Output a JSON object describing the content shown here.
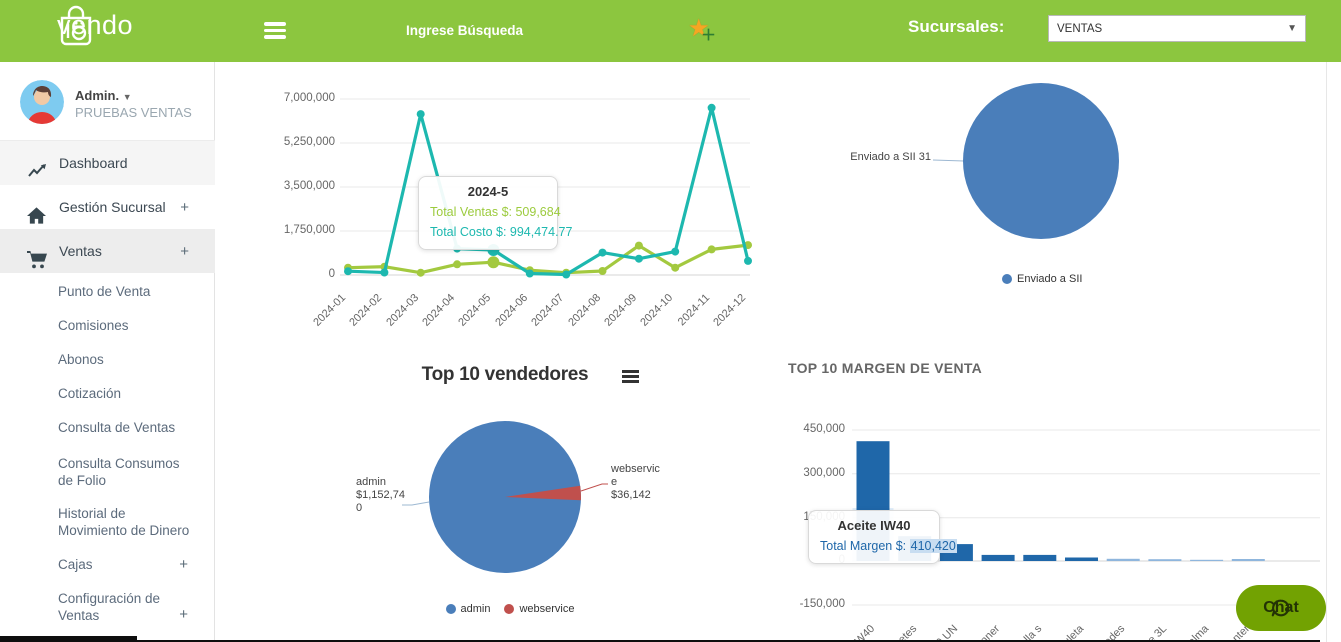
{
  "header": {
    "logo_text": "vendo",
    "search_placeholder": "Ingrese Búsqueda",
    "sucursales_label": "Sucursales:",
    "branch_selected": "VENTAS"
  },
  "sidebar": {
    "user": {
      "name": "Admin.",
      "subtitle": "PRUEBAS VENTAS"
    },
    "items": [
      {
        "label": "Dashboard",
        "icon": "trending-up-icon",
        "plus": false,
        "bg": "#f5f5f5"
      },
      {
        "label": "Gestión Sucursal",
        "icon": "home-icon",
        "plus": true,
        "bg": "#ffffff"
      },
      {
        "label": "Ventas",
        "icon": "cart-icon",
        "plus": true,
        "bg": "#ededed"
      }
    ],
    "sub_items": [
      {
        "label": "Punto de Venta",
        "plus": false
      },
      {
        "label": "Comisiones",
        "plus": false
      },
      {
        "label": "Abonos",
        "plus": false
      },
      {
        "label": "Cotización",
        "plus": false
      },
      {
        "label": "Consulta de Ventas",
        "plus": false
      },
      {
        "label": "Consulta Consumos de Folio",
        "plus": false
      },
      {
        "label": "Historial de Movimiento de Dinero",
        "plus": false
      },
      {
        "label": "Cajas",
        "plus": true
      },
      {
        "label": "Configuración de Ventas",
        "plus": true
      }
    ]
  },
  "chart_data": [
    {
      "id": "ventas-costo-line",
      "type": "line",
      "x": [
        "2024-01",
        "2024-02",
        "2024-03",
        "2024-04",
        "2024-05",
        "2024-06",
        "2024-07",
        "2024-08",
        "2024-09",
        "2024-10",
        "2024-11",
        "2024-12"
      ],
      "series": [
        {
          "name": "Total Ventas $",
          "color": "#a3c93f",
          "values": [
            290000,
            330000,
            90000,
            425000,
            509684,
            190000,
            90000,
            160000,
            1170000,
            290000,
            1020000,
            1190000
          ]
        },
        {
          "name": "Total Costo $",
          "color": "#1db8af",
          "values": [
            150000,
            100000,
            6400000,
            1050000,
            994475,
            60000,
            20000,
            890000,
            650000,
            930000,
            6650000,
            560000
          ]
        }
      ],
      "ylim": [
        0,
        7000000
      ],
      "yticks": [
        "7,000,000",
        "5,250,000",
        "3,500,000",
        "1,750,000",
        "0"
      ],
      "hover_index": 4,
      "tooltip": {
        "title": "2024-5",
        "rows": [
          {
            "text": "Total Ventas $: 509,684"
          },
          {
            "text": "Total Costo $: 994,474.77"
          }
        ]
      }
    },
    {
      "id": "sii-pie",
      "type": "pie",
      "slices": [
        {
          "name": "Enviado a SII",
          "value": 31,
          "color": "#4a7eba"
        }
      ],
      "point_label": "Enviado a SII 31",
      "legend": [
        "Enviado a SII"
      ]
    },
    {
      "id": "vendedores-pie",
      "type": "pie",
      "title": "Top 10 vendedores",
      "slices": [
        {
          "name": "admin",
          "value": 1152740,
          "color": "#4a7eba",
          "label_lines": [
            "admin",
            "$1,152,74",
            "0"
          ]
        },
        {
          "name": "webservice",
          "value": 36142,
          "color": "#c0504d",
          "label_lines": [
            "webservic",
            "e",
            "$36,142"
          ]
        }
      ],
      "legend": [
        "admin",
        "webservice"
      ]
    },
    {
      "id": "margen-bar",
      "type": "bar",
      "title": "TOP 10 MARGEN DE VENTA",
      "category_fragments": [
        "W40",
        "etes",
        "0 UN",
        "nner",
        "lla s",
        "uleta",
        "odes",
        "e 3L",
        "alma",
        "nter"
      ],
      "values": [
        410420,
        85000,
        58000,
        21000,
        21000,
        12000,
        7500,
        6000,
        1500,
        7000
      ],
      "bar_colors": [
        "#1f67a9",
        "#1f67a9",
        "#1f67a9",
        "#1f67a9",
        "#1f67a9",
        "#1f67a9",
        "#8fb6dd",
        "#8fb6dd",
        "#8fb6dd",
        "#8fb6dd"
      ],
      "ylim": [
        -150000,
        450000
      ],
      "yticks": [
        "450,000",
        "300,000",
        "150,000",
        "0",
        "-150,000"
      ],
      "hover_index": 0,
      "tooltip": {
        "title": "Aceite IW40",
        "label": "Total Margen $: ",
        "value": "410,420"
      }
    }
  ],
  "chat": {
    "label": "Chat"
  }
}
